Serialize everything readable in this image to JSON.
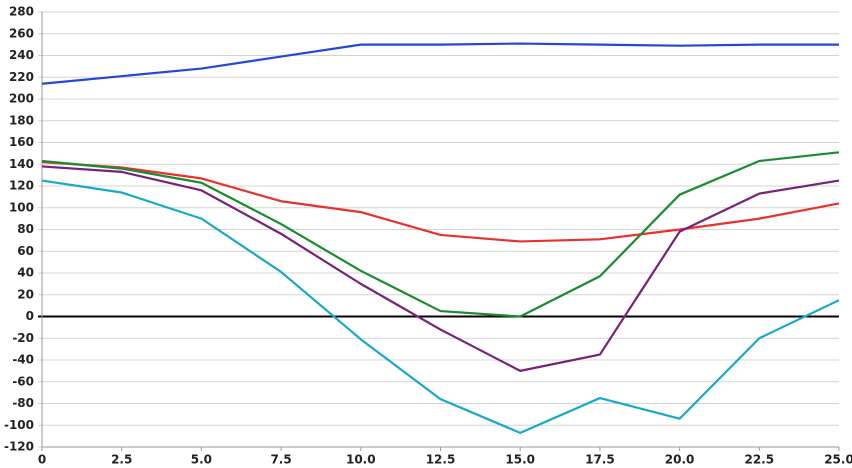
{
  "chart_data": {
    "type": "line",
    "x": [
      0,
      2.5,
      5,
      7.5,
      10,
      12.5,
      15,
      17.5,
      20,
      22.5,
      25
    ],
    "series": [
      {
        "color": "#2447d6",
        "values": [
          214,
          221,
          228,
          239,
          250,
          250,
          251,
          250,
          249,
          250,
          250
        ]
      },
      {
        "color": "#e8312a",
        "values": [
          142,
          137,
          127,
          106,
          96,
          75,
          69,
          71,
          80,
          90,
          104
        ]
      },
      {
        "color": "#1a8c30",
        "values": [
          143,
          136,
          123,
          85,
          42,
          5,
          0,
          37,
          112,
          143,
          151
        ]
      },
      {
        "color": "#762277",
        "values": [
          138,
          133,
          116,
          76,
          30,
          -12,
          -50,
          -35,
          78,
          113,
          125
        ]
      },
      {
        "color": "#16a9c8",
        "values": [
          125,
          114,
          90,
          41,
          -21,
          -76,
          -107,
          -75,
          -94,
          -20,
          15
        ]
      }
    ],
    "xlim": [
      0,
      25
    ],
    "xticks": [
      0,
      2.5,
      {
        "value": 5,
        "label": "5.0"
      },
      7.5,
      {
        "value": 10,
        "label": "10.0"
      },
      12.5,
      {
        "value": 15,
        "label": "15.0"
      },
      17.5,
      {
        "value": 20,
        "label": "20.0"
      },
      22.5,
      {
        "value": 25,
        "label": "25.0"
      }
    ],
    "ylim": [
      -120,
      280
    ],
    "yticks": [
      -120,
      -100,
      -80,
      -60,
      -40,
      -20,
      0,
      20,
      40,
      60,
      80,
      100,
      120,
      140,
      160,
      180,
      200,
      220,
      240,
      260,
      280
    ],
    "grid": true,
    "zero_line": true
  }
}
